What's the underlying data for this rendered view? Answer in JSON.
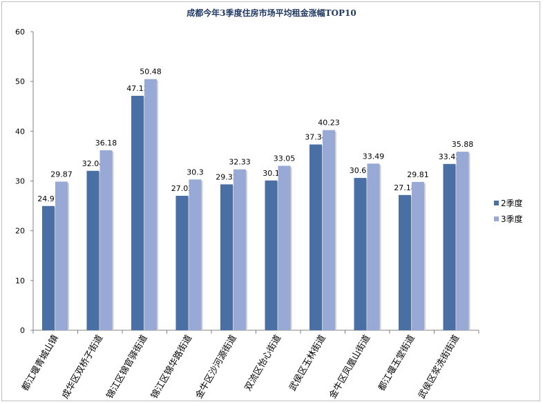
{
  "chart_data": {
    "type": "bar",
    "title": "成都今年3季度住房市场平均租金涨幅TOP10",
    "xlabel": "",
    "ylabel": "",
    "ylim": [
      0,
      60
    ],
    "yticks": [
      0,
      10,
      20,
      30,
      40,
      50,
      60
    ],
    "grid": false,
    "legend_position": "right",
    "categories": [
      "都江堰青城山镇",
      "成华区双桥子街道",
      "锦江区锦官驿街道",
      "锦江区锦华路街道",
      "金牛区沙河源街道",
      "双流区怡心街道",
      "武侯区玉林街道",
      "金牛区凤凰山街道",
      "都江堰玉堂街道",
      "武侯区浆洗街街道"
    ],
    "series": [
      {
        "name": "2季度",
        "color": "#4a6fa5",
        "values": [
          24.97,
          32.04,
          47.12,
          27.02,
          29.32,
          30.1,
          37.34,
          30.61,
          27.18,
          33.42
        ],
        "labels": [
          "24.97",
          "32.04",
          "47.12",
          "27.02",
          "29.32",
          "30.1",
          "37.34",
          "30.61",
          "27.18",
          "33.42"
        ]
      },
      {
        "name": "3季度",
        "color": "#97a9d4",
        "values": [
          29.87,
          36.18,
          50.48,
          30.3,
          32.33,
          33.05,
          40.23,
          33.49,
          29.81,
          35.88
        ],
        "labels": [
          "29.87",
          "36.18",
          "50.48",
          "30.3",
          "32.33",
          "33.05",
          "40.23",
          "33.49",
          "29.81",
          "35.88"
        ]
      }
    ]
  }
}
